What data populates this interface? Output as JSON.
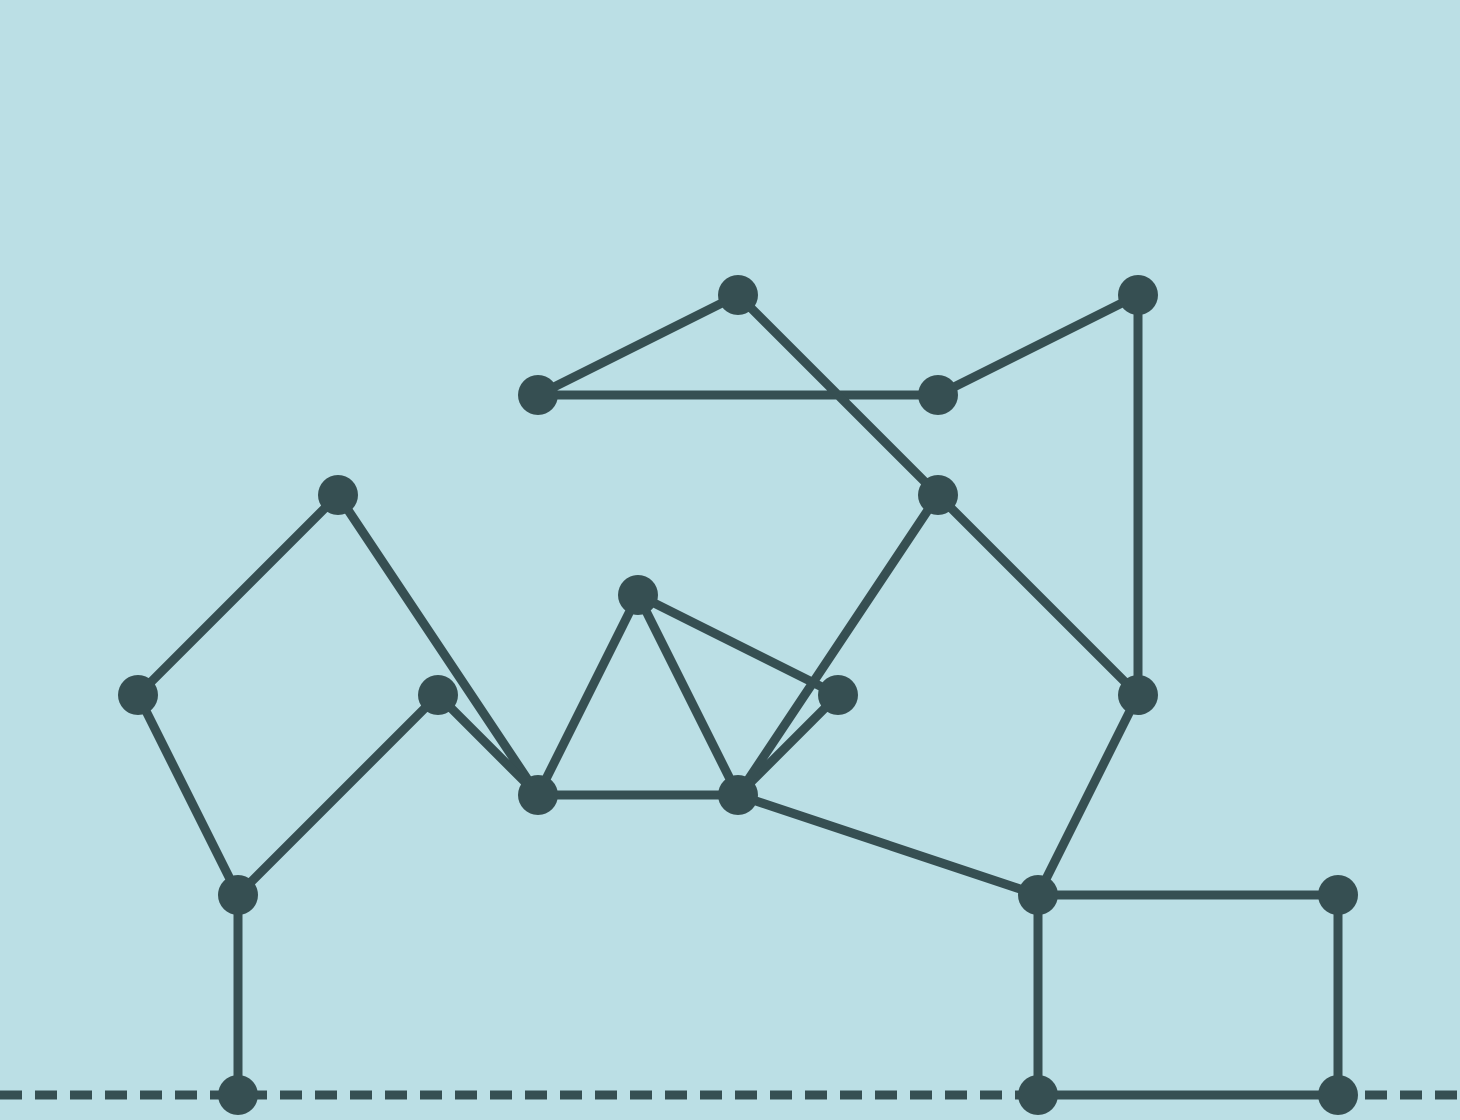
{
  "diagram": {
    "type": "graph",
    "colors": {
      "background": "#bbdfe5",
      "ink": "#364f52"
    },
    "ground_line": {
      "style": "dashed"
    },
    "nodes": [
      {
        "id": "n1"
      },
      {
        "id": "n2"
      },
      {
        "id": "n3"
      },
      {
        "id": "n4"
      },
      {
        "id": "n5"
      },
      {
        "id": "n6"
      },
      {
        "id": "n7"
      },
      {
        "id": "n8"
      },
      {
        "id": "n9"
      },
      {
        "id": "n10"
      },
      {
        "id": "n11"
      },
      {
        "id": "n12"
      },
      {
        "id": "n13"
      },
      {
        "id": "n14"
      },
      {
        "id": "n15"
      },
      {
        "id": "n16"
      },
      {
        "id": "n17"
      },
      {
        "id": "n18"
      },
      {
        "id": "n19"
      }
    ],
    "edges": [
      [
        "n1",
        "n2"
      ],
      [
        "n1",
        "n3"
      ],
      [
        "n3",
        "n4"
      ],
      [
        "n3",
        "n11"
      ],
      [
        "n11",
        "n12"
      ],
      [
        "n12",
        "n13"
      ],
      [
        "n12",
        "n15"
      ],
      [
        "n15",
        "n17"
      ],
      [
        "n15",
        "n18"
      ],
      [
        "n17",
        "n19"
      ],
      [
        "n18",
        "n19"
      ],
      [
        "n2",
        "n5"
      ],
      [
        "n5",
        "n7"
      ],
      [
        "n7",
        "n6"
      ],
      [
        "n7",
        "n8"
      ],
      [
        "n7",
        "n9"
      ],
      [
        "n9",
        "n10"
      ],
      [
        "n9",
        "n16"
      ],
      [
        "n10",
        "n12"
      ],
      [
        "n10",
        "n14"
      ],
      [
        "n14",
        "n11"
      ],
      [
        "n14",
        "n13"
      ],
      [
        "n13",
        "n8"
      ],
      [
        "n8",
        "n16"
      ],
      [
        "n16",
        "n10"
      ]
    ]
  }
}
